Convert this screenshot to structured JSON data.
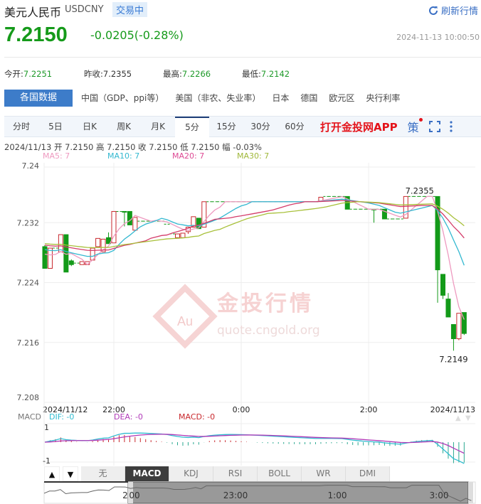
{
  "header": {
    "name": "美元人民币",
    "symbol": "USDCNY",
    "status": "交易中",
    "refresh_label": "刷新行情",
    "refresh_icon": "refresh-icon"
  },
  "quote": {
    "price": "7.2150",
    "change": "-0.0205(-0.28%)",
    "datetime": "2024-11-13 10:00:50",
    "color": "#159a1a"
  },
  "stats": [
    {
      "label": "今开:",
      "value": "7.2251"
    },
    {
      "label": "昨收:",
      "value": "7.2355"
    },
    {
      "label": "最高:",
      "value": "7.2266"
    },
    {
      "label": "最低:",
      "value": "7.2142"
    }
  ],
  "country_tabs": [
    "各国数据",
    "中国（GDP、ppi等）",
    "美国（非农、失业率）",
    "日本",
    "德国",
    "欧元区",
    "央行利率"
  ],
  "period_tabs": [
    "分时",
    "5日",
    "日K",
    "周K",
    "月K",
    "5分",
    "15分",
    "30分",
    "60分"
  ],
  "active_period": "5分",
  "app_link": "打开金投网APP",
  "strategy_label": "策",
  "candle_info": "2024/11/13  开 7.2150  高 7.2150  收 7.2150  低 7.2150  幅 -0.03%",
  "ma_legend": [
    {
      "label": "MA5: 7",
      "color": "#ee9ac0"
    },
    {
      "label": "MA10: 7",
      "color": "#33b8d0"
    },
    {
      "label": "MA20: 7",
      "color": "#de4a94"
    },
    {
      "label": "MA30: 7",
      "color": "#a0b83a"
    }
  ],
  "watermark": {
    "logo": "Au",
    "title": "金投行情",
    "url": "quote.cngold.org"
  },
  "chart_data": {
    "type": "candlestick",
    "ylim": [
      7.208,
      7.24
    ],
    "y_ticks": [
      "7.24",
      "7.232",
      "7.224",
      "7.216",
      "7.208"
    ],
    "x_ticks": [
      {
        "label": "2024/11/12",
        "index": 0
      },
      {
        "label": "22:00",
        "index": 13
      },
      {
        "label": "0:00",
        "index": 37
      },
      {
        "label": "2:00",
        "index": 61
      },
      {
        "label": "2024/11/13",
        "index": 79
      }
    ],
    "annotations": [
      {
        "label": "7.2355",
        "price": 7.2355,
        "index": 69
      },
      {
        "label": "7.2149",
        "price": 7.2149,
        "index": 77
      }
    ],
    "candles_ohlc": [
      [
        7.2288,
        7.229,
        7.2259,
        7.2259
      ],
      [
        7.2259,
        7.2286,
        7.2259,
        7.2286
      ],
      [
        7.2286,
        7.2286,
        7.2286,
        7.2286
      ],
      [
        7.2281,
        7.2304,
        7.2281,
        7.2304
      ],
      [
        7.2304,
        7.2304,
        7.2254,
        7.2254
      ],
      [
        7.2269,
        7.2271,
        7.2262,
        7.2264
      ],
      [
        7.2266,
        7.2266,
        7.2266,
        7.2266
      ],
      [
        7.2264,
        7.2268,
        7.2264,
        7.2268
      ],
      [
        7.2264,
        7.2268,
        7.2264,
        7.2268
      ],
      [
        7.227,
        7.2286,
        7.227,
        7.2286
      ],
      [
        7.2288,
        7.2299,
        7.2288,
        7.2299
      ],
      [
        7.2281,
        7.2298,
        7.2281,
        7.2298
      ],
      [
        7.23,
        7.2307,
        7.2292,
        7.2292
      ],
      [
        7.2293,
        7.2335,
        7.2293,
        7.2335
      ],
      [
        7.2335,
        7.2335,
        7.2335,
        7.2335
      ],
      [
        7.2335,
        7.2335,
        7.2315,
        7.2334
      ],
      [
        7.2335,
        7.2335,
        7.2317,
        7.2317
      ],
      [
        7.231,
        7.2327,
        7.231,
        7.2327
      ],
      [
        7.2322,
        7.2322,
        7.2322,
        7.2322
      ],
      [
        7.2322,
        7.2322,
        7.2322,
        7.2322
      ],
      [
        7.2322,
        7.2322,
        7.2322,
        7.2322
      ],
      [
        7.2322,
        7.2322,
        7.2322,
        7.2322
      ],
      [
        7.2322,
        7.2322,
        7.2322,
        7.2322
      ],
      [
        7.2318,
        7.2318,
        7.2318,
        7.2318
      ],
      [
        7.2305,
        7.2305,
        7.2305,
        7.2305
      ],
      [
        7.23,
        7.2305,
        7.23,
        7.2305
      ],
      [
        7.23,
        7.2306,
        7.23,
        7.2306
      ],
      [
        7.2308,
        7.2314,
        7.2305,
        7.2314
      ],
      [
        7.2314,
        7.2328,
        7.2314,
        7.2328
      ],
      [
        7.2326,
        7.2326,
        7.2312,
        7.2312
      ],
      [
        7.2314,
        7.2348,
        7.2314,
        7.2348
      ],
      [
        7.2348,
        7.2348,
        7.2348,
        7.2348
      ],
      [
        7.2348,
        7.2348,
        7.2348,
        7.2348
      ],
      [
        7.2348,
        7.2348,
        7.2348,
        7.2348
      ],
      [
        7.2348,
        7.2348,
        7.2348,
        7.2348
      ],
      [
        7.2348,
        7.2348,
        7.2348,
        7.2348
      ],
      [
        7.2348,
        7.2348,
        7.2348,
        7.2348
      ],
      [
        7.2348,
        7.2348,
        7.2348,
        7.2348
      ],
      [
        7.2348,
        7.2348,
        7.2348,
        7.2348
      ],
      [
        7.2348,
        7.2348,
        7.2348,
        7.2348
      ],
      [
        7.2348,
        7.2348,
        7.2348,
        7.2348
      ],
      [
        7.2348,
        7.2348,
        7.2348,
        7.2348
      ],
      [
        7.2348,
        7.2348,
        7.2348,
        7.2348
      ],
      [
        7.2348,
        7.2348,
        7.2348,
        7.2348
      ],
      [
        7.2348,
        7.2348,
        7.2348,
        7.2348
      ],
      [
        7.2348,
        7.2348,
        7.2348,
        7.2348
      ],
      [
        7.2348,
        7.2348,
        7.2348,
        7.2348
      ],
      [
        7.2348,
        7.2348,
        7.2348,
        7.2348
      ],
      [
        7.2348,
        7.2348,
        7.2348,
        7.2348
      ],
      [
        7.2348,
        7.2348,
        7.2348,
        7.2348
      ],
      [
        7.2348,
        7.2348,
        7.2348,
        7.2348
      ],
      [
        7.2348,
        7.2348,
        7.2348,
        7.2348
      ],
      [
        7.2349,
        7.2354,
        7.2349,
        7.2354
      ],
      [
        7.2355,
        7.2355,
        7.2355,
        7.2355
      ],
      [
        7.2355,
        7.2355,
        7.2355,
        7.2355
      ],
      [
        7.2355,
        7.2355,
        7.2355,
        7.2355
      ],
      [
        7.2355,
        7.2355,
        7.2355,
        7.2355
      ],
      [
        7.2355,
        7.2355,
        7.2338,
        7.2338
      ],
      [
        7.2338,
        7.2338,
        7.2338,
        7.2338
      ],
      [
        7.2338,
        7.2338,
        7.2338,
        7.2338
      ],
      [
        7.2338,
        7.2338,
        7.2338,
        7.2338
      ],
      [
        7.2338,
        7.2338,
        7.2338,
        7.2338
      ],
      [
        7.2338,
        7.2338,
        7.232,
        7.2337
      ],
      [
        7.2338,
        7.2338,
        7.2338,
        7.2338
      ],
      [
        7.2338,
        7.2338,
        7.2325,
        7.2325
      ],
      [
        7.2325,
        7.2325,
        7.2325,
        7.2325
      ],
      [
        7.2325,
        7.2325,
        7.2325,
        7.2325
      ],
      [
        7.2325,
        7.2325,
        7.2325,
        7.2325
      ],
      [
        7.2326,
        7.2355,
        7.2326,
        7.2355
      ],
      [
        7.2355,
        7.2355,
        7.2355,
        7.2355
      ],
      [
        7.2355,
        7.2355,
        7.2355,
        7.2355
      ],
      [
        7.2355,
        7.2355,
        7.2355,
        7.2355
      ],
      [
        7.2355,
        7.2355,
        7.2355,
        7.2355
      ],
      [
        7.2355,
        7.2355,
        7.2355,
        7.2355
      ],
      [
        7.2355,
        7.2355,
        7.2213,
        7.2257
      ],
      [
        7.2251,
        7.2251,
        7.2218,
        7.2223
      ],
      [
        7.2218,
        7.2226,
        7.2194,
        7.2194
      ],
      [
        7.2184,
        7.2184,
        7.2149,
        7.2165
      ],
      [
        7.2165,
        7.2199,
        7.2163,
        7.2199
      ],
      [
        7.22,
        7.22,
        7.217,
        7.2172
      ]
    ],
    "up_color": "#c8282d",
    "down_color": "#139a19",
    "macd": {
      "legend": {
        "title": "MACD",
        "dif": "DIF: -0",
        "dea": "DEA: -0",
        "macd": "MACD: -0"
      },
      "y_ticks": [
        "1",
        "-1"
      ],
      "dif_color": "#2fbcd0",
      "dea_color": "#b03ab8",
      "macd_color": "#c8282d"
    },
    "indicator_tabs": [
      "无",
      "MACD",
      "KDJ",
      "RSI",
      "BOLL",
      "WR",
      "DMI"
    ],
    "active_indicator": "MACD",
    "navigator_ticks": [
      "2",
      "00",
      "23:00",
      "1:00",
      "3:00"
    ]
  }
}
